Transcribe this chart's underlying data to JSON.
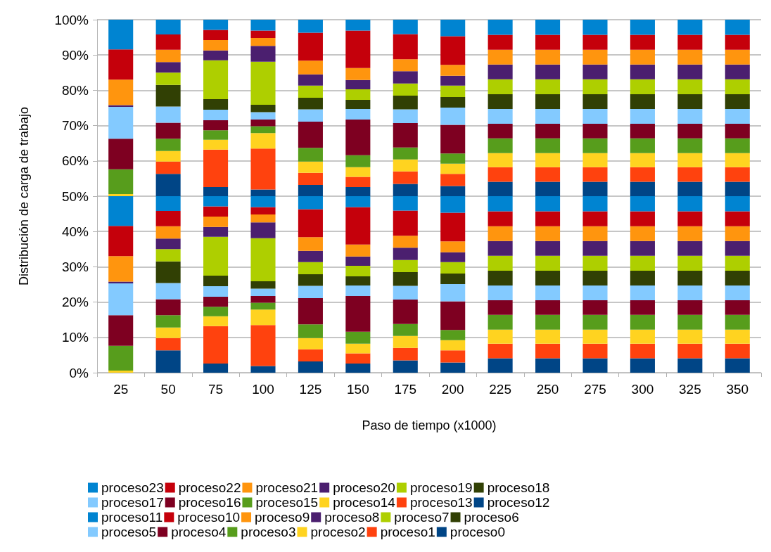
{
  "chart_data": {
    "type": "bar",
    "stacked": true,
    "xlabel": "Paso de tiempo (x1000)",
    "ylabel": "Distribución de carga de trabajo",
    "categories": [
      "25",
      "50",
      "75",
      "100",
      "125",
      "150",
      "175",
      "200",
      "225",
      "250",
      "275",
      "300",
      "325",
      "350"
    ],
    "ylim": [
      0,
      100
    ],
    "yticks": [
      {
        "value": 0,
        "label": "0%"
      },
      {
        "value": 10,
        "label": "10%"
      },
      {
        "value": 20,
        "label": "20%"
      },
      {
        "value": 30,
        "label": "30%"
      },
      {
        "value": 40,
        "label": "40%"
      },
      {
        "value": 50,
        "label": "50%"
      },
      {
        "value": 60,
        "label": "60%"
      },
      {
        "value": 70,
        "label": "70%"
      },
      {
        "value": 80,
        "label": "80%"
      },
      {
        "value": 90,
        "label": "90%"
      },
      {
        "value": 100,
        "label": "100%"
      }
    ],
    "grid": "y",
    "legend": "bottom",
    "series": [
      {
        "name": "proceso0",
        "color": "#004586",
        "values": [
          0,
          6.3,
          2.6,
          1.9,
          3.2,
          2.6,
          3.5,
          2.9,
          4.1,
          4.1,
          4.1,
          4.1,
          4.1,
          4.1
        ]
      },
      {
        "name": "proceso1",
        "color": "#ff420e",
        "values": [
          0,
          3.5,
          10.6,
          11.6,
          3.4,
          2.9,
          3.5,
          3.4,
          4.1,
          4.1,
          4.1,
          4.1,
          4.1,
          4.1
        ]
      },
      {
        "name": "proceso2",
        "color": "#ffd320",
        "values": [
          0.6,
          3.0,
          2.8,
          4.4,
          3.2,
          2.7,
          3.4,
          2.9,
          4.0,
          4.0,
          4.0,
          4.0,
          4.0,
          4.0
        ]
      },
      {
        "name": "proceso3",
        "color": "#579d1c",
        "values": [
          7.0,
          3.5,
          2.7,
          1.9,
          3.9,
          3.4,
          3.4,
          2.9,
          4.2,
          4.2,
          4.2,
          4.2,
          4.2,
          4.2
        ]
      },
      {
        "name": "proceso4",
        "color": "#7e0021",
        "values": [
          8.7,
          4.5,
          2.8,
          1.9,
          7.4,
          10.1,
          6.9,
          8.1,
          4.1,
          4.1,
          4.1,
          4.1,
          4.1,
          4.1
        ]
      },
      {
        "name": "proceso5",
        "color": "#83caff",
        "values": [
          9.0,
          4.6,
          3.0,
          2.1,
          3.5,
          3.0,
          3.9,
          4.9,
          4.2,
          4.2,
          4.2,
          4.2,
          4.2,
          4.2
        ]
      },
      {
        "name": "proceso6",
        "color": "#314004",
        "values": [
          0,
          6.1,
          3.0,
          2.1,
          3.3,
          2.6,
          3.9,
          3.0,
          4.2,
          4.2,
          4.2,
          4.2,
          4.2,
          4.2
        ]
      },
      {
        "name": "proceso7",
        "color": "#aecf00",
        "values": [
          0,
          3.5,
          11.0,
          12.2,
          3.4,
          3.0,
          3.4,
          3.2,
          4.2,
          4.2,
          4.2,
          4.2,
          4.2,
          4.2
        ]
      },
      {
        "name": "proceso8",
        "color": "#4b1f6f",
        "values": [
          0.5,
          3.0,
          2.8,
          4.5,
          3.2,
          2.6,
          3.5,
          2.8,
          4.2,
          4.2,
          4.2,
          4.2,
          4.2,
          4.2
        ]
      },
      {
        "name": "proceso9",
        "color": "#ff950e",
        "values": [
          7.2,
          3.5,
          2.9,
          2.2,
          3.9,
          3.4,
          3.4,
          3.1,
          4.2,
          4.2,
          4.2,
          4.2,
          4.2,
          4.2
        ]
      },
      {
        "name": "proceso10",
        "color": "#c5000b",
        "values": [
          8.6,
          4.3,
          2.9,
          2.1,
          7.9,
          10.6,
          7.1,
          8.1,
          4.2,
          4.2,
          4.2,
          4.2,
          4.2,
          4.2
        ]
      },
      {
        "name": "proceso11",
        "color": "#0084d1",
        "values": [
          8.4,
          4.2,
          2.9,
          3.1,
          3.7,
          3.1,
          4.1,
          4.7,
          4.3,
          4.3,
          4.3,
          4.3,
          4.3,
          4.3
        ]
      },
      {
        "name": "proceso12",
        "color": "#004586",
        "values": [
          0,
          6.3,
          2.6,
          1.9,
          3.2,
          2.6,
          3.5,
          2.9,
          4.1,
          4.1,
          4.1,
          4.1,
          4.1,
          4.1
        ]
      },
      {
        "name": "proceso13",
        "color": "#ff420e",
        "values": [
          0,
          3.5,
          10.6,
          11.6,
          3.4,
          2.9,
          3.5,
          3.4,
          4.1,
          4.1,
          4.1,
          4.1,
          4.1,
          4.1
        ]
      },
      {
        "name": "proceso14",
        "color": "#ffd320",
        "values": [
          0.6,
          3.0,
          2.8,
          4.4,
          3.2,
          2.7,
          3.4,
          2.9,
          4.0,
          4.0,
          4.0,
          4.0,
          4.0,
          4.0
        ]
      },
      {
        "name": "proceso15",
        "color": "#579d1c",
        "values": [
          7.0,
          3.5,
          2.7,
          1.9,
          3.9,
          3.4,
          3.4,
          2.9,
          4.2,
          4.2,
          4.2,
          4.2,
          4.2,
          4.2
        ]
      },
      {
        "name": "proceso16",
        "color": "#7e0021",
        "values": [
          8.7,
          4.5,
          2.8,
          1.9,
          7.4,
          10.1,
          6.9,
          8.1,
          4.1,
          4.1,
          4.1,
          4.1,
          4.1,
          4.1
        ]
      },
      {
        "name": "proceso17",
        "color": "#83caff",
        "values": [
          9.0,
          4.6,
          3.0,
          2.1,
          3.5,
          3.0,
          3.9,
          4.9,
          4.2,
          4.2,
          4.2,
          4.2,
          4.2,
          4.2
        ]
      },
      {
        "name": "proceso18",
        "color": "#314004",
        "values": [
          0,
          6.1,
          3.0,
          2.1,
          3.3,
          2.6,
          3.9,
          3.0,
          4.2,
          4.2,
          4.2,
          4.2,
          4.2,
          4.2
        ]
      },
      {
        "name": "proceso19",
        "color": "#aecf00",
        "values": [
          0,
          3.5,
          11.0,
          12.2,
          3.4,
          3.0,
          3.4,
          3.2,
          4.2,
          4.2,
          4.2,
          4.2,
          4.2,
          4.2
        ]
      },
      {
        "name": "proceso20",
        "color": "#4b1f6f",
        "values": [
          0.5,
          3.0,
          2.8,
          4.5,
          3.2,
          2.6,
          3.5,
          2.8,
          4.2,
          4.2,
          4.2,
          4.2,
          4.2,
          4.2
        ]
      },
      {
        "name": "proceso21",
        "color": "#ff950e",
        "values": [
          7.2,
          3.5,
          2.9,
          2.2,
          3.9,
          3.4,
          3.4,
          3.1,
          4.2,
          4.2,
          4.2,
          4.2,
          4.2,
          4.2
        ]
      },
      {
        "name": "proceso22",
        "color": "#c5000b",
        "values": [
          8.6,
          4.3,
          2.9,
          2.1,
          7.9,
          10.6,
          7.1,
          8.1,
          4.2,
          4.2,
          4.2,
          4.2,
          4.2,
          4.2
        ]
      },
      {
        "name": "proceso23",
        "color": "#0084d1",
        "values": [
          8.4,
          4.2,
          2.9,
          3.1,
          3.7,
          3.1,
          4.1,
          4.7,
          4.3,
          4.3,
          4.3,
          4.3,
          4.3,
          4.3
        ]
      }
    ]
  }
}
